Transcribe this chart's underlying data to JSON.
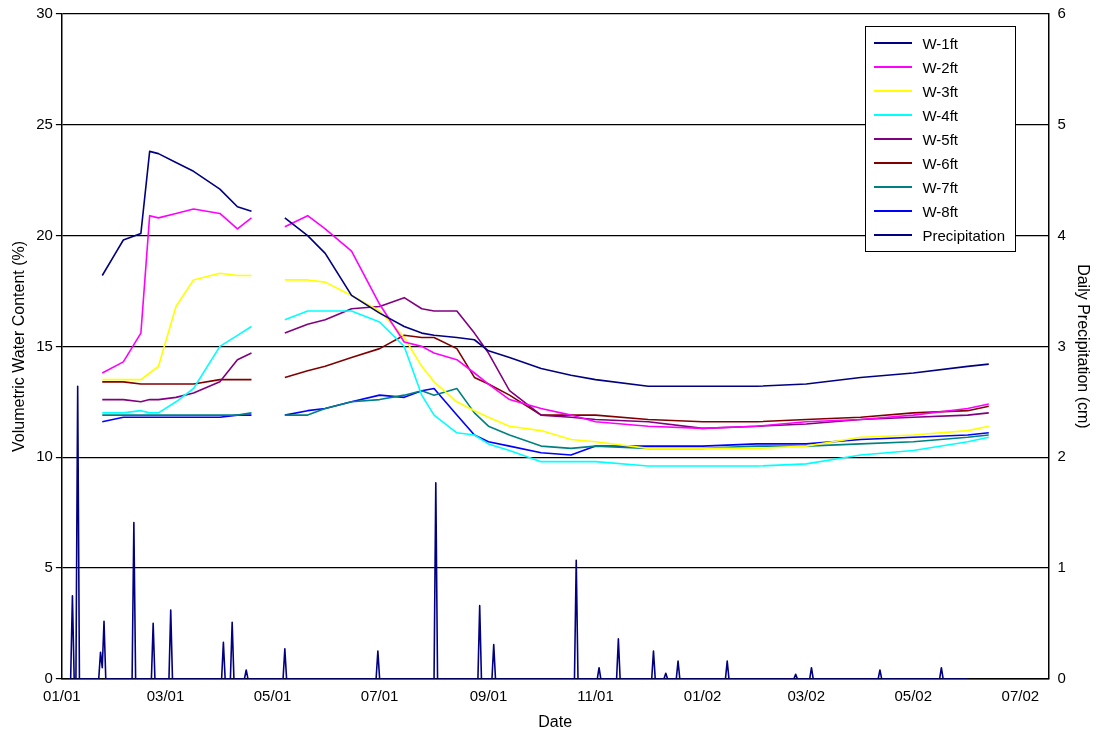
{
  "chart_data": {
    "type": "line",
    "xlabel": "Date",
    "ylabel": "Volumetric Water Content (%)",
    "y2label": "Daily Precipitation (cm)",
    "x": [
      "2001-01-24",
      "2001-02-05",
      "2001-02-15",
      "2001-02-20",
      "2001-02-25",
      "2001-03-07",
      "2001-03-17",
      "2001-04-01",
      "2001-04-11",
      "2001-04-19",
      "2001-04-29",
      "2001-05-08",
      "2001-05-21",
      "2001-05-31",
      "2001-06-15",
      "2001-07-01",
      "2001-07-15",
      "2001-07-25",
      "2001-08-01",
      "2001-08-14",
      "2001-08-24",
      "2001-09-01",
      "2001-09-13",
      "2001-10-01",
      "2001-10-18",
      "2001-11-01",
      "2001-12-01",
      "2002-01-01",
      "2002-02-01",
      "2002-03-01",
      "2002-04-01",
      "2002-05-01",
      "2002-06-01",
      "2002-06-13"
    ],
    "series": [
      {
        "name": "W-1ft",
        "color": "#000080",
        "values": [
          18.2,
          19.8,
          20.1,
          23.8,
          23.7,
          23.3,
          22.9,
          22.1,
          21.3,
          21.1,
          null,
          20.8,
          20.0,
          19.2,
          17.3,
          16.5,
          15.9,
          15.6,
          15.5,
          15.4,
          15.3,
          14.8,
          14.5,
          14.0,
          13.7,
          13.5,
          13.2,
          13.2,
          13.2,
          13.3,
          13.6,
          13.8,
          14.1,
          14.2
        ]
      },
      {
        "name": "W-2ft",
        "color": "#ff00ff",
        "values": [
          13.8,
          14.3,
          15.6,
          20.9,
          20.8,
          21.0,
          21.2,
          21.0,
          20.3,
          20.8,
          null,
          20.4,
          20.9,
          20.3,
          19.3,
          16.9,
          15.2,
          15.0,
          14.7,
          14.4,
          13.8,
          13.3,
          12.6,
          12.2,
          11.9,
          11.6,
          11.4,
          11.3,
          11.4,
          11.6,
          11.7,
          11.9,
          12.2,
          12.4
        ]
      },
      {
        "name": "W-3ft",
        "color": "#ffff00",
        "values": [
          13.5,
          13.5,
          13.5,
          13.8,
          14.1,
          16.8,
          18.0,
          18.3,
          18.2,
          18.2,
          null,
          18.0,
          18.0,
          17.9,
          17.3,
          16.6,
          15.4,
          14.1,
          13.4,
          12.5,
          12.1,
          11.8,
          11.4,
          11.2,
          10.8,
          10.7,
          10.4,
          10.4,
          10.4,
          10.5,
          10.9,
          11.0,
          11.2,
          11.4
        ]
      },
      {
        "name": "W-4ft",
        "color": "#00ffff",
        "values": [
          12.0,
          12.0,
          12.1,
          12.0,
          12.0,
          12.5,
          13.1,
          15.0,
          15.5,
          15.9,
          null,
          16.2,
          16.6,
          16.6,
          16.6,
          16.1,
          15.0,
          12.8,
          11.9,
          11.1,
          11.0,
          10.6,
          10.3,
          9.8,
          9.8,
          9.8,
          9.6,
          9.6,
          9.6,
          9.7,
          10.1,
          10.3,
          10.7,
          10.9
        ]
      },
      {
        "name": "W-5ft",
        "color": "#800080",
        "values": [
          12.6,
          12.6,
          12.5,
          12.6,
          12.6,
          12.7,
          12.9,
          13.4,
          14.4,
          14.7,
          null,
          15.6,
          16.0,
          16.2,
          16.7,
          16.8,
          17.2,
          16.7,
          16.6,
          16.6,
          15.6,
          14.7,
          13.0,
          11.9,
          11.8,
          11.7,
          11.6,
          11.3,
          11.4,
          11.5,
          11.7,
          11.8,
          11.9,
          12.0
        ]
      },
      {
        "name": "W-6ft",
        "color": "#800000",
        "values": [
          13.4,
          13.4,
          13.3,
          13.3,
          13.3,
          13.3,
          13.3,
          13.5,
          13.5,
          13.5,
          null,
          13.6,
          13.9,
          14.1,
          14.5,
          14.9,
          15.5,
          15.4,
          15.4,
          14.9,
          13.6,
          13.3,
          12.8,
          11.9,
          11.9,
          11.9,
          11.7,
          11.6,
          11.6,
          11.7,
          11.8,
          12.0,
          12.1,
          12.3
        ]
      },
      {
        "name": "W-7ft",
        "color": "#008080",
        "values": [
          11.9,
          11.9,
          11.9,
          11.9,
          11.9,
          11.9,
          11.9,
          11.9,
          11.9,
          12.0,
          null,
          11.9,
          11.9,
          12.2,
          12.5,
          12.6,
          12.8,
          13.0,
          12.8,
          13.1,
          12.0,
          11.4,
          11.0,
          10.5,
          10.4,
          10.5,
          10.4,
          10.4,
          10.5,
          10.5,
          10.6,
          10.7,
          10.9,
          11.0
        ]
      },
      {
        "name": "W-8ft",
        "color": "#0000ff",
        "values": [
          11.6,
          11.8,
          11.8,
          11.8,
          11.8,
          11.8,
          11.8,
          11.8,
          11.9,
          11.9,
          null,
          11.9,
          12.1,
          12.2,
          12.5,
          12.8,
          12.7,
          13.0,
          13.1,
          11.9,
          11.0,
          10.7,
          10.5,
          10.2,
          10.1,
          10.5,
          10.5,
          10.5,
          10.6,
          10.6,
          10.8,
          10.9,
          11.0,
          11.1
        ]
      },
      {
        "name": "Precipitation",
        "color": "#000080",
        "axis": "y2",
        "x": [
          "2001-01-05",
          "2001-01-06",
          "2001-01-07",
          "2001-01-08",
          "2001-01-09",
          "2001-01-10",
          "2001-01-11",
          "2001-01-22",
          "2001-01-23",
          "2001-01-24",
          "2001-01-25",
          "2001-01-26",
          "2001-02-10",
          "2001-02-11",
          "2001-02-12",
          "2001-02-21",
          "2001-02-22",
          "2001-02-23",
          "2001-03-03",
          "2001-03-04",
          "2001-03-05",
          "2001-04-02",
          "2001-04-03",
          "2001-04-04",
          "2001-04-07",
          "2001-04-08",
          "2001-04-09",
          "2001-04-15",
          "2001-04-16",
          "2001-04-17",
          "2001-05-07",
          "2001-05-08",
          "2001-05-09",
          "2001-06-29",
          "2001-06-30",
          "2001-07-01",
          "2001-08-01",
          "2001-08-02",
          "2001-08-03",
          "2001-08-26",
          "2001-08-27",
          "2001-08-28",
          "2001-09-03",
          "2001-09-04",
          "2001-09-05",
          "2001-10-20",
          "2001-10-21",
          "2001-10-22",
          "2001-11-02",
          "2001-11-03",
          "2001-11-04",
          "2001-11-13",
          "2001-11-14",
          "2001-11-15",
          "2001-12-03",
          "2001-12-04",
          "2001-12-05",
          "2001-12-10",
          "2001-12-11",
          "2001-12-12",
          "2001-12-17",
          "2001-12-18",
          "2001-12-19",
          "2002-01-14",
          "2002-01-15",
          "2002-01-16",
          "2002-02-22",
          "2002-02-23",
          "2002-02-24",
          "2002-03-03",
          "2002-03-04",
          "2002-03-05",
          "2002-04-11",
          "2002-04-12",
          "2002-04-13",
          "2002-05-16",
          "2002-05-17",
          "2002-05-18",
          "2002-06-01"
        ],
        "values": [
          0,
          0,
          0.75,
          0,
          0,
          2.64,
          0,
          0,
          0.24,
          0.1,
          0.52,
          0,
          0,
          1.41,
          0,
          0,
          0.5,
          0,
          0,
          0.62,
          0,
          0,
          0.33,
          0,
          0,
          0.51,
          0,
          0,
          0.08,
          0,
          0,
          0.27,
          0,
          0,
          0.25,
          0,
          0,
          1.77,
          0,
          0,
          0.66,
          0,
          0,
          0.31,
          0,
          0,
          1.07,
          0,
          0,
          0.1,
          0,
          0,
          0.36,
          0,
          0,
          0.25,
          0,
          0,
          0.05,
          0,
          0,
          0.16,
          0,
          0,
          0.16,
          0,
          0,
          0.04,
          0,
          0,
          0.1,
          0,
          0,
          0.08,
          0,
          0,
          0.1,
          0,
          0
        ]
      }
    ],
    "xlim": [
      "2001-01-01",
      "2002-07-17"
    ],
    "xticks": [
      {
        "value": "2001-01-01",
        "label": "01/01"
      },
      {
        "value": "2001-03-01",
        "label": "03/01"
      },
      {
        "value": "2001-05-01",
        "label": "05/01"
      },
      {
        "value": "2001-07-01",
        "label": "07/01"
      },
      {
        "value": "2001-09-01",
        "label": "09/01"
      },
      {
        "value": "2001-11-01",
        "label": "11/01"
      },
      {
        "value": "2002-01-01",
        "label": "01/02"
      },
      {
        "value": "2002-03-01",
        "label": "03/02"
      },
      {
        "value": "2002-05-01",
        "label": "05/02"
      },
      {
        "value": "2002-07-01",
        "label": "07/02"
      }
    ],
    "ylim": [
      0,
      30
    ],
    "yticks": [
      0,
      5,
      10,
      15,
      20,
      25,
      30
    ],
    "y2lim": [
      0,
      6
    ],
    "y2ticks": [
      0,
      1,
      2,
      3,
      4,
      5,
      6
    ],
    "grid": "y",
    "legend": "top right",
    "marker": "none",
    "line_style": "solid"
  }
}
